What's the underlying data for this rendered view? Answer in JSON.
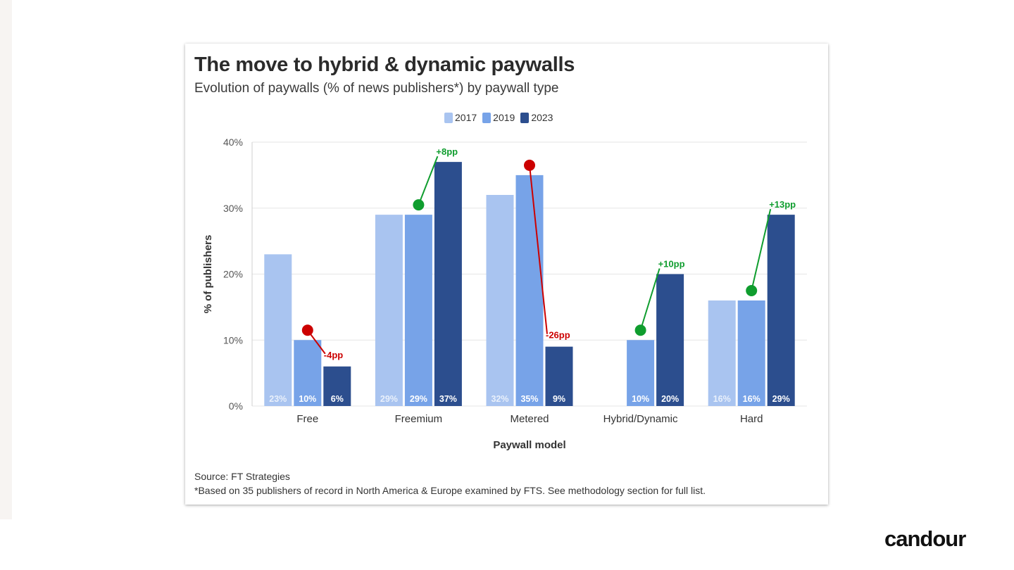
{
  "brand": "candour",
  "chart_data": {
    "type": "bar",
    "title": "The move to hybrid & dynamic paywalls",
    "subtitle": "Evolution of paywalls (% of news publishers*) by paywall type",
    "xlabel": "Paywall model",
    "ylabel": "% of publishers",
    "ylim": [
      0,
      40
    ],
    "yticks": [
      "0%",
      "10%",
      "20%",
      "30%",
      "40%"
    ],
    "ytick_values": [
      0,
      10,
      20,
      30,
      40
    ],
    "grid": true,
    "legend_position": "top-center",
    "categories": [
      "Free",
      "Freemium",
      "Metered",
      "Hybrid/Dynamic",
      "Hard"
    ],
    "series": [
      {
        "name": "2017",
        "color": "#a9c4f0",
        "values": [
          23,
          29,
          32,
          null,
          16
        ],
        "labels": [
          "23%",
          "29%",
          "32%",
          "",
          "16%"
        ]
      },
      {
        "name": "2019",
        "color": "#77a3e8",
        "values": [
          10,
          29,
          35,
          10,
          16
        ],
        "labels": [
          "10%",
          "29%",
          "35%",
          "10%",
          "16%"
        ]
      },
      {
        "name": "2023",
        "color": "#2c4e8e",
        "values": [
          6,
          37,
          9,
          20,
          29
        ],
        "labels": [
          "6%",
          "37%",
          "9%",
          "20%",
          "29%"
        ]
      }
    ],
    "annotations": [
      {
        "category": "Free",
        "text": "-4pp",
        "direction": "down",
        "color": "#cc0000"
      },
      {
        "category": "Freemium",
        "text": "+8pp",
        "direction": "up",
        "color": "#0f9d2e"
      },
      {
        "category": "Metered",
        "text": "-26pp",
        "direction": "down",
        "color": "#cc0000"
      },
      {
        "category": "Hybrid/Dynamic",
        "text": "+10pp",
        "direction": "up",
        "color": "#0f9d2e"
      },
      {
        "category": "Hard",
        "text": "+13pp",
        "direction": "up",
        "color": "#0f9d2e"
      }
    ],
    "source": "Source: FT Strategies",
    "footnote": "*Based on 35 publishers of record in North America & Europe examined by FTS. See methodology section for full list."
  }
}
